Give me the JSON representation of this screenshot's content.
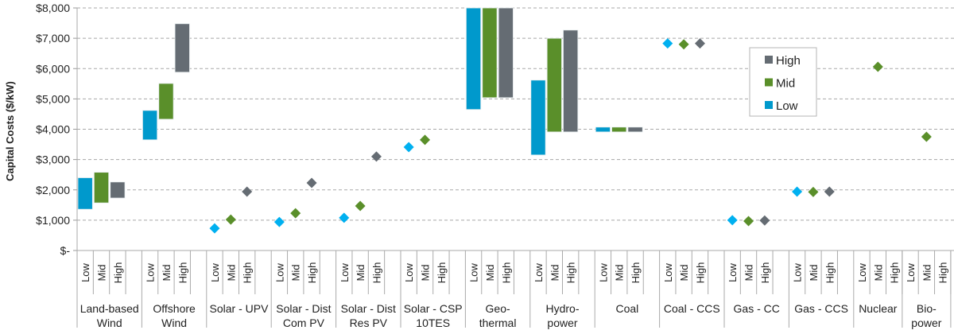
{
  "chart_data": {
    "type": "floating-bar-and-scatter",
    "title": "",
    "ylabel": "Capital Costs ($/kW)",
    "xlabel": "",
    "ylim": [
      0,
      8000
    ],
    "yticks": [
      0,
      1000,
      2000,
      3000,
      4000,
      5000,
      6000,
      7000,
      8000
    ],
    "ytick_labels": [
      "$-",
      "$1,000",
      "$2,000",
      "$3,000",
      "$4,000",
      "$5,000",
      "$6,000",
      "$7,000",
      "$8,000"
    ],
    "grid": "horizontal dashed",
    "legend": {
      "placement": "upper-right",
      "entries": [
        "High",
        "Mid",
        "Low"
      ]
    },
    "colors": {
      "Low": "#0099cc",
      "Low_point": "#00b0f0",
      "Mid": "#5a8f2a",
      "High": "#656c73"
    },
    "scenario_labels": [
      "Low",
      "Mid",
      "High"
    ],
    "categories": [
      {
        "label": [
          "Land-based",
          "Wind"
        ],
        "Low": [
          1360,
          2400
        ],
        "Mid": [
          1570,
          2580
        ],
        "High": [
          1730,
          2260
        ]
      },
      {
        "label": [
          "Offshore",
          "Wind"
        ],
        "Low": [
          3650,
          4620
        ],
        "Mid": [
          4330,
          5510
        ],
        "High": [
          5880,
          7480
        ]
      },
      {
        "label": [
          "Solar - UPV",
          ""
        ],
        "Low": 730,
        "Mid": 1020,
        "High": 1940
      },
      {
        "label": [
          "Solar - Dist",
          "Com PV"
        ],
        "Low": 940,
        "Mid": 1230,
        "High": 2230
      },
      {
        "label": [
          "Solar - Dist",
          "Res PV"
        ],
        "Low": 1080,
        "Mid": 1470,
        "High": 3100
      },
      {
        "label": [
          "Solar - CSP",
          "10TES"
        ],
        "Low": 3410,
        "Mid": 3650,
        "High": null
      },
      {
        "label": [
          "Geo-",
          "thermal"
        ],
        "Low": [
          4650,
          8000
        ],
        "Mid": [
          5040,
          8000
        ],
        "High": [
          5040,
          8000
        ]
      },
      {
        "label": [
          "Hydro-",
          "power"
        ],
        "Low": [
          3150,
          5620
        ],
        "Mid": [
          3910,
          7000
        ],
        "High": [
          3910,
          7270
        ]
      },
      {
        "label": [
          "Coal",
          ""
        ],
        "Low": [
          3910,
          4070
        ],
        "Mid": [
          3910,
          4070
        ],
        "High": [
          3910,
          4070
        ]
      },
      {
        "label": [
          "Coal - CCS",
          ""
        ],
        "Low": 6830,
        "Mid": 6800,
        "High": 6830
      },
      {
        "label": [
          "Gas - CC",
          ""
        ],
        "Low": 1000,
        "Mid": 970,
        "High": 990
      },
      {
        "label": [
          "Gas - CCS",
          ""
        ],
        "Low": 1940,
        "Mid": 1930,
        "High": 1940
      },
      {
        "label": [
          "Nuclear",
          ""
        ],
        "Low": null,
        "Mid": 6060,
        "High": null
      },
      {
        "label": [
          "Bio-",
          "power"
        ],
        "Low": null,
        "Mid": 3750,
        "High": null
      }
    ]
  }
}
